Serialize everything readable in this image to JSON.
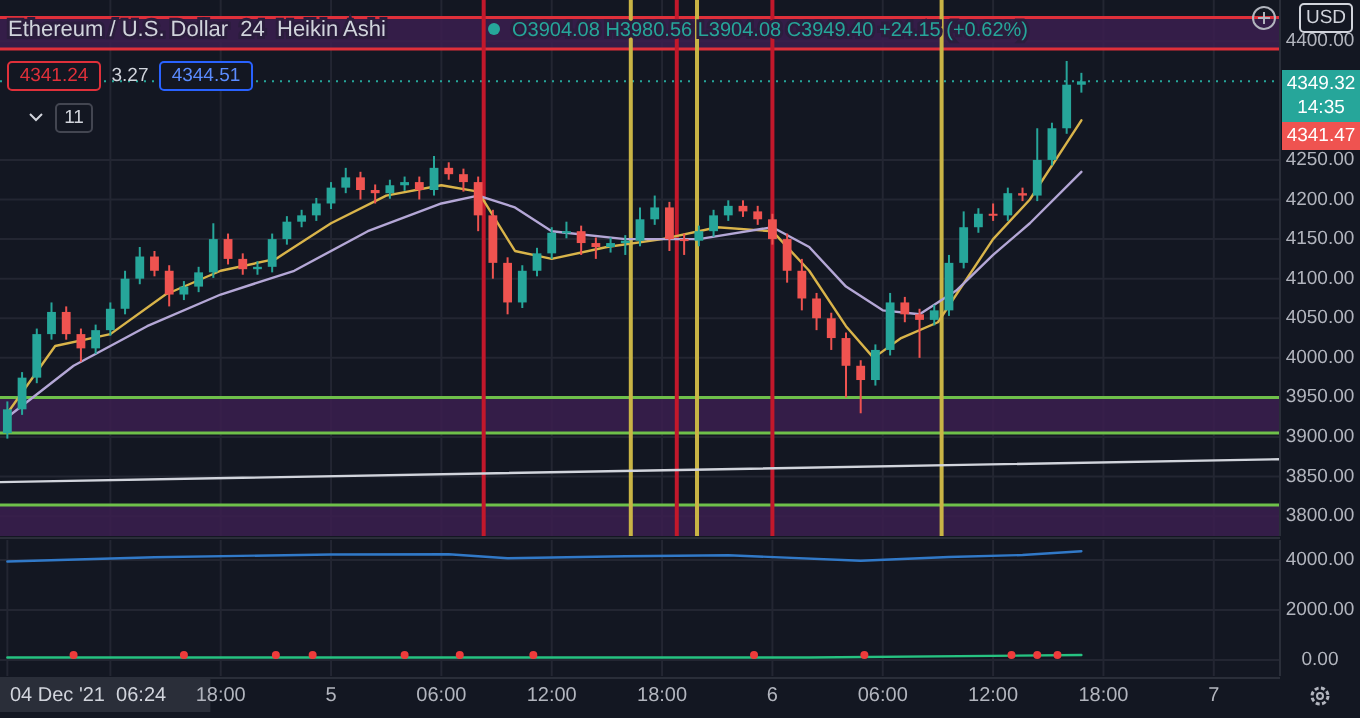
{
  "chart_data": [
    {
      "type": "candlestick",
      "title": "Ethereum / U.S. Dollar  24  Heikin Ashi",
      "subtitle": "O3904.08 H3980.56 L3904.08 C3949.40 +24.15 (+0.62%)",
      "annotations": [
        "4341.24",
        "3.27",
        "4344.51",
        "11",
        "USD",
        "4349.32",
        "14:35",
        "4341.47"
      ],
      "x": [
        "2021-12-04T06:24",
        "2021-12-04T07:12",
        "2021-12-04T08:00",
        "2021-12-04T08:48",
        "2021-12-04T09:36",
        "2021-12-04T10:24",
        "2021-12-04T11:12",
        "2021-12-04T12:00",
        "2021-12-04T12:48",
        "2021-12-04T13:36",
        "2021-12-04T14:24",
        "2021-12-04T15:12",
        "2021-12-04T16:00",
        "2021-12-04T16:48",
        "2021-12-04T17:36",
        "2021-12-04T18:24",
        "2021-12-04T19:12",
        "2021-12-04T20:00",
        "2021-12-04T20:48",
        "2021-12-04T21:36",
        "2021-12-04T22:24",
        "2021-12-04T23:12",
        "2021-12-05T00:00",
        "2021-12-05T00:48",
        "2021-12-05T01:36",
        "2021-12-05T02:24",
        "2021-12-05T03:12",
        "2021-12-05T04:00",
        "2021-12-05T04:48",
        "2021-12-05T05:36",
        "2021-12-05T06:24",
        "2021-12-05T07:12",
        "2021-12-05T08:00",
        "2021-12-05T08:48",
        "2021-12-05T09:36",
        "2021-12-05T10:24",
        "2021-12-05T11:12",
        "2021-12-05T12:00",
        "2021-12-05T12:48",
        "2021-12-05T13:36",
        "2021-12-05T14:24",
        "2021-12-05T15:12",
        "2021-12-05T16:00",
        "2021-12-05T16:48",
        "2021-12-05T17:36",
        "2021-12-05T18:24",
        "2021-12-05T19:12",
        "2021-12-05T20:00",
        "2021-12-05T20:48",
        "2021-12-05T21:36",
        "2021-12-05T22:24",
        "2021-12-05T23:12",
        "2021-12-06T00:00",
        "2021-12-06T00:48",
        "2021-12-06T01:36",
        "2021-12-06T02:24",
        "2021-12-06T03:12",
        "2021-12-06T04:00",
        "2021-12-06T04:48",
        "2021-12-06T05:36",
        "2021-12-06T06:24",
        "2021-12-06T07:12",
        "2021-12-06T08:00",
        "2021-12-06T08:48",
        "2021-12-06T09:36",
        "2021-12-06T10:24",
        "2021-12-06T11:12",
        "2021-12-06T12:00",
        "2021-12-06T12:48",
        "2021-12-06T13:36",
        "2021-12-06T14:24",
        "2021-12-06T15:12",
        "2021-12-06T16:00",
        "2021-12-06T16:48"
      ],
      "ohlc": [
        [
          3905,
          3945,
          3898,
          3935
        ],
        [
          3935,
          3982,
          3928,
          3975
        ],
        [
          3975,
          4037,
          3968,
          4030
        ],
        [
          4030,
          4070,
          4023,
          4058
        ],
        [
          4058,
          4065,
          4023,
          4030
        ],
        [
          4030,
          4037,
          3995,
          4012
        ],
        [
          4012,
          4042,
          4005,
          4035
        ],
        [
          4035,
          4070,
          4028,
          4062
        ],
        [
          4062,
          4110,
          4055,
          4100
        ],
        [
          4100,
          4140,
          4093,
          4128
        ],
        [
          4128,
          4135,
          4103,
          4110
        ],
        [
          4110,
          4117,
          4065,
          4080
        ],
        [
          4080,
          4097,
          4073,
          4090
        ],
        [
          4090,
          4115,
          4083,
          4108
        ],
        [
          4108,
          4170,
          4101,
          4150
        ],
        [
          4150,
          4157,
          4118,
          4125
        ],
        [
          4125,
          4132,
          4105,
          4112
        ],
        [
          4112,
          4122,
          4105,
          4115
        ],
        [
          4115,
          4157,
          4108,
          4150
        ],
        [
          4150,
          4179,
          4143,
          4172
        ],
        [
          4172,
          4187,
          4165,
          4180
        ],
        [
          4180,
          4202,
          4173,
          4195
        ],
        [
          4195,
          4222,
          4188,
          4215
        ],
        [
          4215,
          4240,
          4208,
          4228
        ],
        [
          4228,
          4235,
          4200,
          4212
        ],
        [
          4212,
          4219,
          4195,
          4208
        ],
        [
          4208,
          4225,
          4201,
          4218
        ],
        [
          4218,
          4229,
          4211,
          4222
        ],
        [
          4222,
          4229,
          4200,
          4212
        ],
        [
          4212,
          4255,
          4205,
          4240
        ],
        [
          4240,
          4247,
          4225,
          4232
        ],
        [
          4232,
          4239,
          4210,
          4222
        ],
        [
          4222,
          4229,
          4160,
          4180
        ],
        [
          4180,
          4187,
          4100,
          4120
        ],
        [
          4120,
          4127,
          4055,
          4070
        ],
        [
          4070,
          4117,
          4063,
          4110
        ],
        [
          4110,
          4139,
          4103,
          4132
        ],
        [
          4132,
          4165,
          4125,
          4158
        ],
        [
          4158,
          4172,
          4151,
          4160
        ],
        [
          4160,
          4167,
          4130,
          4145
        ],
        [
          4145,
          4152,
          4125,
          4140
        ],
        [
          4140,
          4152,
          4133,
          4145
        ],
        [
          4145,
          4155,
          4130,
          4148
        ],
        [
          4148,
          4190,
          4141,
          4175
        ],
        [
          4175,
          4205,
          4168,
          4190
        ],
        [
          4190,
          4197,
          4135,
          4150
        ],
        [
          4150,
          4157,
          4130,
          4148
        ],
        [
          4148,
          4167,
          4141,
          4160
        ],
        [
          4160,
          4187,
          4153,
          4180
        ],
        [
          4180,
          4199,
          4173,
          4192
        ],
        [
          4192,
          4199,
          4178,
          4185
        ],
        [
          4185,
          4192,
          4168,
          4175
        ],
        [
          4175,
          4182,
          4143,
          4150
        ],
        [
          4150,
          4157,
          4095,
          4110
        ],
        [
          4110,
          4125,
          4060,
          4075
        ],
        [
          4075,
          4082,
          4035,
          4050
        ],
        [
          4050,
          4057,
          4010,
          4025
        ],
        [
          4025,
          4032,
          3950,
          3990
        ],
        [
          3990,
          3997,
          3930,
          3972
        ],
        [
          3972,
          4017,
          3965,
          4010
        ],
        [
          4010,
          4082,
          4003,
          4070
        ],
        [
          4070,
          4077,
          4045,
          4055
        ],
        [
          4055,
          4062,
          4000,
          4048
        ],
        [
          4048,
          4067,
          4041,
          4060
        ],
        [
          4060,
          4130,
          4053,
          4120
        ],
        [
          4120,
          4185,
          4113,
          4165
        ],
        [
          4165,
          4189,
          4158,
          4182
        ],
        [
          4182,
          4195,
          4173,
          4180
        ],
        [
          4180,
          4215,
          4173,
          4208
        ],
        [
          4208,
          4215,
          4198,
          4205
        ],
        [
          4205,
          4290,
          4198,
          4250
        ],
        [
          4250,
          4297,
          4243,
          4290
        ],
        [
          4290,
          4375,
          4283,
          4345
        ],
        [
          4345,
          4360,
          4335,
          4349.32
        ]
      ],
      "colors": [
        "#26a69a",
        "#26a69a",
        "#26a69a",
        "#26a69a",
        "#ef5350",
        "#ef5350",
        "#26a69a",
        "#26a69a",
        "#26a69a",
        "#26a69a",
        "#ef5350",
        "#ef5350",
        "#26a69a",
        "#26a69a",
        "#26a69a",
        "#ef5350",
        "#ef5350",
        "#26a69a",
        "#26a69a",
        "#26a69a",
        "#26a69a",
        "#26a69a",
        "#26a69a",
        "#26a69a",
        "#ef5350",
        "#ef5350",
        "#26a69a",
        "#26a69a",
        "#ef5350",
        "#26a69a",
        "#ef5350",
        "#ef5350",
        "#ef5350",
        "#ef5350",
        "#ef5350",
        "#26a69a",
        "#26a69a",
        "#26a69a",
        "#26a69a",
        "#ef5350",
        "#ef5350",
        "#26a69a",
        "#26a69a",
        "#26a69a",
        "#26a69a",
        "#ef5350",
        "#ef5350",
        "#26a69a",
        "#26a69a",
        "#26a69a",
        "#ef5350",
        "#ef5350",
        "#ef5350",
        "#ef5350",
        "#ef5350",
        "#ef5350",
        "#ef5350",
        "#ef5350",
        "#ef5350",
        "#26a69a",
        "#26a69a",
        "#ef5350",
        "#ef5350",
        "#26a69a",
        "#26a69a",
        "#26a69a",
        "#26a69a",
        "#ef5350",
        "#26a69a",
        "#ef5350",
        "#26a69a",
        "#26a69a",
        "#26a69a",
        "#26a69a"
      ],
      "series": [
        {
          "type": "line",
          "marker": "none",
          "color": "#d9b44a",
          "x": [
            "2021-12-04T06:24",
            "2021-12-04T09:00",
            "2021-12-04T12:00",
            "2021-12-04T15:00",
            "2021-12-04T18:00",
            "2021-12-04T21:00",
            "2021-12-05T00:00",
            "2021-12-05T03:00",
            "2021-12-05T06:00",
            "2021-12-05T08:00",
            "2021-12-05T10:00",
            "2021-12-05T12:00",
            "2021-12-05T15:00",
            "2021-12-05T18:00",
            "2021-12-05T21:00",
            "2021-12-06T00:00",
            "2021-12-06T02:00",
            "2021-12-06T04:00",
            "2021-12-06T05:30",
            "2021-12-06T07:00",
            "2021-12-06T09:00",
            "2021-12-06T12:00",
            "2021-12-06T14:00",
            "2021-12-06T16:48"
          ],
          "values": [
            3930,
            4015,
            4030,
            4080,
            4110,
            4125,
            4170,
            4205,
            4218,
            4210,
            4135,
            4125,
            4140,
            4150,
            4165,
            4160,
            4110,
            4040,
            4000,
            4025,
            4045,
            4150,
            4200,
            4300
          ]
        },
        {
          "type": "line",
          "marker": "none",
          "color": "#b4a7d6",
          "x": [
            "2021-12-04T06:24",
            "2021-12-04T10:00",
            "2021-12-04T14:00",
            "2021-12-04T18:00",
            "2021-12-04T22:00",
            "2021-12-05T02:00",
            "2021-12-05T06:00",
            "2021-12-05T08:00",
            "2021-12-05T10:00",
            "2021-12-05T12:00",
            "2021-12-05T16:00",
            "2021-12-05T20:00",
            "2021-12-06T00:00",
            "2021-12-06T02:00",
            "2021-12-06T04:00",
            "2021-12-06T06:00",
            "2021-12-06T08:00",
            "2021-12-06T10:00",
            "2021-12-06T12:00",
            "2021-12-06T14:00",
            "2021-12-06T16:48"
          ],
          "values": [
            3925,
            3990,
            4040,
            4080,
            4110,
            4160,
            4195,
            4205,
            4190,
            4160,
            4150,
            4150,
            4165,
            4140,
            4090,
            4060,
            4055,
            4085,
            4130,
            4170,
            4235
          ]
        },
        {
          "type": "line",
          "marker": "none",
          "color": "#d1d4dc",
          "x": [
            "2021-12-04T06:00",
            "2021-12-07T03:36"
          ],
          "values": [
            3843,
            3872
          ]
        }
      ],
      "ref_lines": [
        {
          "axis": "y",
          "value": 3950,
          "color": "#6fc04a"
        },
        {
          "axis": "y",
          "value": 3905,
          "color": "#6fc04a"
        },
        {
          "axis": "y",
          "value": 3814,
          "color": "#6fc04a"
        },
        {
          "axis": "y",
          "value": 4390,
          "color": "#e0303a"
        },
        {
          "axis": "y",
          "value": 4430,
          "color": "#e0303a"
        },
        {
          "axis": "y",
          "value": 4349.32,
          "color": "#26a69a",
          "line_style": "dotted"
        },
        {
          "axis": "x",
          "value": "2021-12-05T08:18",
          "color": "#c2182b"
        },
        {
          "axis": "x",
          "value": "2021-12-05T16:18",
          "color": "#c9b445"
        },
        {
          "axis": "x",
          "value": "2021-12-05T18:48",
          "color": "#c2182b"
        },
        {
          "axis": "x",
          "value": "2021-12-05T19:54",
          "color": "#c9b445"
        },
        {
          "axis": "x",
          "value": "2021-12-06T00:00",
          "color": "#c2182b"
        },
        {
          "axis": "x",
          "value": "2021-12-06T09:12",
          "color": "#c9b445"
        }
      ],
      "bands": [
        {
          "axis": "y",
          "from": 3905,
          "to": 3950,
          "color": "#3b1f4f"
        },
        {
          "axis": "y",
          "from": 3775,
          "to": 3814,
          "color": "#3b1f4f"
        },
        {
          "axis": "y",
          "from": 4390,
          "to": 4430,
          "color": "#3b1f4f"
        }
      ],
      "xlim": [
        "2021-12-04T06:00",
        "2021-12-07T03:36"
      ],
      "ylim": [
        3775,
        4452
      ],
      "yticks": [
        {
          "value": 3800,
          "label": "3800.00"
        },
        {
          "value": 3850,
          "label": "3850.00"
        },
        {
          "value": 3900,
          "label": "3900.00"
        },
        {
          "value": 3950,
          "label": "3950.00"
        },
        {
          "value": 4000,
          "label": "4000.00"
        },
        {
          "value": 4050,
          "label": "4050.00"
        },
        {
          "value": 4100,
          "label": "4100.00"
        },
        {
          "value": 4150,
          "label": "4150.00"
        },
        {
          "value": 4200,
          "label": "4200.00"
        },
        {
          "value": 4250,
          "label": "4250.00"
        },
        {
          "value": 4400,
          "label": "4400.00"
        }
      ],
      "xticks": [
        {
          "value": "2021-12-04T12:00",
          "label": null
        },
        {
          "value": "2021-12-04T18:00",
          "label": null
        },
        {
          "value": "2021-12-05T00:00",
          "label": null
        },
        {
          "value": "2021-12-05T06:00",
          "label": null
        },
        {
          "value": "2021-12-05T12:00",
          "label": null
        },
        {
          "value": "2021-12-05T18:00",
          "label": null
        },
        {
          "value": "2021-12-06T00:00",
          "label": null
        },
        {
          "value": "2021-12-06T06:00",
          "label": null
        },
        {
          "value": "2021-12-06T12:00",
          "label": null
        },
        {
          "value": "2021-12-06T18:00",
          "label": null
        },
        {
          "value": "2021-12-07T00:00",
          "label": null
        }
      ],
      "tick_labels": "y",
      "grid": true
    },
    {
      "type": "line",
      "series": [
        {
          "marker": "none",
          "color": "#3179c8",
          "x": [
            "2021-12-04T06:24",
            "2021-12-04T14:24",
            "2021-12-05T00:00",
            "2021-12-05T06:24",
            "2021-12-05T09:36",
            "2021-12-05T16:00",
            "2021-12-05T21:36",
            "2021-12-06T04:48",
            "2021-12-06T09:36",
            "2021-12-06T13:36",
            "2021-12-06T16:48"
          ],
          "values": [
            3940,
            4110,
            4220,
            4230,
            4070,
            4150,
            4190,
            3970,
            4120,
            4200,
            4350
          ]
        },
        {
          "marker": "none",
          "color": "#26c281",
          "x": [
            "2021-12-04T06:24",
            "2021-12-04T20:00",
            "2021-12-05T11:00",
            "2021-12-06T02:00",
            "2021-12-06T16:48"
          ],
          "values": [
            100,
            100,
            100,
            100,
            200
          ]
        },
        {
          "type": "scatter",
          "marker": "circle",
          "color": "#ef3b3b",
          "x": [
            "2021-12-04T10:00",
            "2021-12-04T16:00",
            "2021-12-04T21:00",
            "2021-12-04T23:00",
            "2021-12-05T04:00",
            "2021-12-05T07:00",
            "2021-12-05T11:00",
            "2021-12-05T23:00",
            "2021-12-06T05:00",
            "2021-12-06T13:00",
            "2021-12-06T14:24",
            "2021-12-06T15:30"
          ],
          "values": [
            200,
            200,
            200,
            200,
            200,
            200,
            200,
            200,
            200,
            200,
            200,
            200
          ]
        }
      ],
      "xlim": [
        "2021-12-04T06:00",
        "2021-12-07T03:36"
      ],
      "ylim": [
        -640,
        4800
      ],
      "yticks": [
        {
          "value": 0,
          "label": "0.00"
        },
        {
          "value": 2000,
          "label": "2000.00"
        },
        {
          "value": 4000,
          "label": "4000.00"
        }
      ],
      "xticks": [
        {
          "value": "2021-12-04T06:24",
          "label": "04 Dec '21  06:24"
        },
        {
          "value": "2021-12-04T12:00",
          "label": null
        },
        {
          "value": "2021-12-04T18:00",
          "label": "18:00"
        },
        {
          "value": "2021-12-05T00:00",
          "label": "5"
        },
        {
          "value": "2021-12-05T06:00",
          "label": "06:00"
        },
        {
          "value": "2021-12-05T12:00",
          "label": "12:00"
        },
        {
          "value": "2021-12-05T18:00",
          "label": "18:00"
        },
        {
          "value": "2021-12-06T00:00",
          "label": "6"
        },
        {
          "value": "2021-12-06T06:00",
          "label": "06:00"
        },
        {
          "value": "2021-12-06T12:00",
          "label": "12:00"
        },
        {
          "value": "2021-12-06T18:00",
          "label": "18:00"
        },
        {
          "value": "2021-12-07T00:00",
          "label": "7"
        }
      ],
      "grid": true
    }
  ]
}
